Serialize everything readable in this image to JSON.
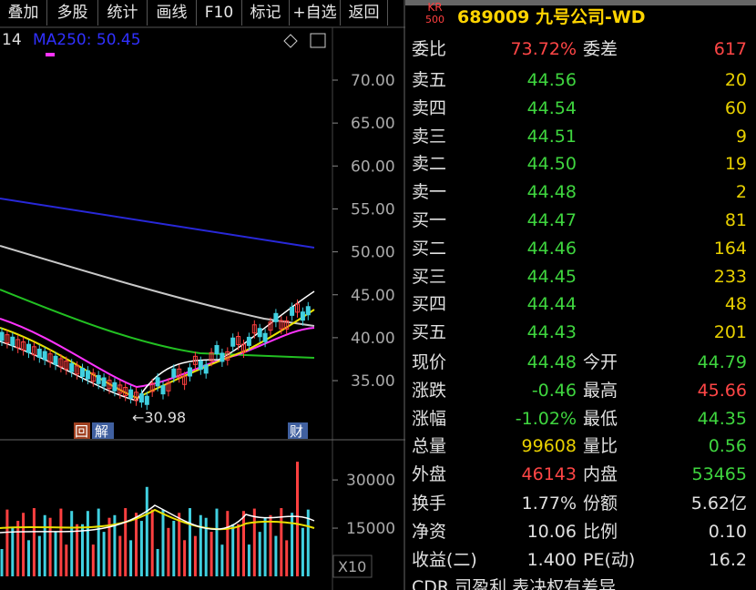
{
  "toolbar": [
    "叠加",
    "多股",
    "统计",
    "画线",
    "F10",
    "标记",
    "+自选",
    "返回"
  ],
  "stock": {
    "badge_top": "KR",
    "badge_bottom": "500",
    "code": "689009",
    "name": "九号公司-WD"
  },
  "chart": {
    "left_text": "14",
    "ma_label": "MA250: 50.45",
    "price_ticks": [
      {
        "value": 70,
        "label": "70.00"
      },
      {
        "value": 65,
        "label": "65.00"
      },
      {
        "value": 60,
        "label": "60.00"
      },
      {
        "value": 55,
        "label": "55.00"
      },
      {
        "value": 50,
        "label": "50.00"
      },
      {
        "value": 45,
        "label": "45.00"
      },
      {
        "value": 40,
        "label": "40.00"
      },
      {
        "value": 35,
        "label": "35.00"
      }
    ],
    "low_label": "30.98",
    "icons": [
      "回",
      "解",
      "财"
    ],
    "volume_ticks": [
      30000,
      15000
    ],
    "volume_unit": "X10"
  },
  "commission": [
    {
      "text": "委比",
      "color": "white"
    },
    {
      "text": "73.72%",
      "color": "red"
    },
    {
      "text": "委差",
      "color": "white"
    },
    {
      "text": "617",
      "color": "red"
    }
  ],
  "asks": [
    [
      "卖五",
      "44.56",
      "20"
    ],
    [
      "卖四",
      "44.54",
      "60"
    ],
    [
      "卖三",
      "44.51",
      "9"
    ],
    [
      "卖二",
      "44.50",
      "19"
    ],
    [
      "卖一",
      "44.48",
      "2"
    ]
  ],
  "bids": [
    [
      "买一",
      "44.47",
      "81"
    ],
    [
      "买二",
      "44.46",
      "164"
    ],
    [
      "买三",
      "44.45",
      "233"
    ],
    [
      "买四",
      "44.44",
      "48"
    ],
    [
      "买五",
      "44.43",
      "201"
    ]
  ],
  "quote": [
    [
      {
        "text": "现价",
        "color": "white"
      },
      {
        "text": "44.48",
        "color": "green"
      },
      {
        "text": "今开",
        "color": "white"
      },
      {
        "text": "44.79",
        "color": "green"
      }
    ],
    [
      {
        "text": "涨跌",
        "color": "white"
      },
      {
        "text": "-0.46",
        "color": "green"
      },
      {
        "text": "最高",
        "color": "white"
      },
      {
        "text": "45.66",
        "color": "red"
      }
    ],
    [
      {
        "text": "涨幅",
        "color": "white"
      },
      {
        "text": "-1.02%",
        "color": "green"
      },
      {
        "text": "最低",
        "color": "white"
      },
      {
        "text": "44.35",
        "color": "green"
      }
    ],
    [
      {
        "text": "总量",
        "color": "white"
      },
      {
        "text": "99608",
        "color": "yellow"
      },
      {
        "text": "量比",
        "color": "white"
      },
      {
        "text": "0.56",
        "color": "green"
      }
    ],
    [
      {
        "text": "外盘",
        "color": "white"
      },
      {
        "text": "46143",
        "color": "red"
      },
      {
        "text": "内盘",
        "color": "white"
      },
      {
        "text": "53465",
        "color": "green"
      }
    ]
  ],
  "finance": [
    [
      "换手",
      "1.77%",
      "份额",
      "5.62亿"
    ],
    [
      "净资",
      "10.06",
      "比例",
      "0.10"
    ],
    [
      "收益(二)",
      "1.400",
      "PE(动)",
      "16.2"
    ]
  ],
  "footer": "CDR 司盈利 表决权有差异"
}
